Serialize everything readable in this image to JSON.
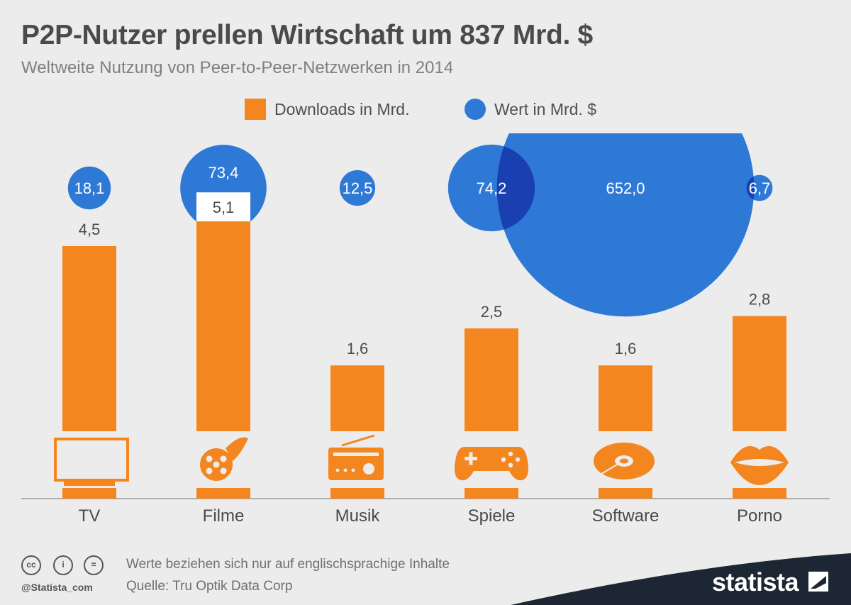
{
  "title": "P2P-Nutzer prellen Wirtschaft um 837 Mrd. $",
  "subtitle": "Weltweite Nutzung von Peer-to-Peer-Netzwerken in 2014",
  "footer": {
    "note": "Werte beziehen sich nur auf englischsprachige Inhalte",
    "source": "Quelle: Tru Optik Data Corp",
    "handle": "@Statista_com",
    "brand": "statista"
  },
  "colors": {
    "bars": "#f4861f",
    "bubbles": "#2f79d6",
    "overlap": "#1a3fb0",
    "text": "#4a4a4a"
  },
  "chart_data": {
    "type": "bar",
    "title": "P2P-Nutzer prellen Wirtschaft um 837 Mrd. $",
    "subtitle": "Weltweite Nutzung von Peer-to-Peer-Netzwerken in 2014",
    "categories": [
      "TV",
      "Filme",
      "Musik",
      "Spiele",
      "Software",
      "Porno"
    ],
    "category_icons": [
      "tv-icon",
      "film-reel-icon",
      "radio-icon",
      "gamepad-icon",
      "disc-icon",
      "lips-icon"
    ],
    "series": [
      {
        "name": "Downloads in Mrd.",
        "type": "bar",
        "values": [
          4.5,
          5.1,
          1.6,
          2.5,
          1.6,
          2.8
        ],
        "labels": [
          "4,5",
          "5,1",
          "1,6",
          "2,5",
          "1,6",
          "2,8"
        ]
      },
      {
        "name": "Wert in Mrd. $",
        "type": "bubble",
        "values": [
          18.1,
          73.4,
          12.5,
          74.2,
          652.0,
          6.7
        ],
        "labels": [
          "18,1",
          "73,4",
          "12,5",
          "74,2",
          "652,0",
          "6,7"
        ]
      }
    ],
    "legend": {
      "position": "top-center",
      "items": [
        "Downloads in Mrd.",
        "Wert in Mrd. $"
      ]
    },
    "grid": false
  }
}
